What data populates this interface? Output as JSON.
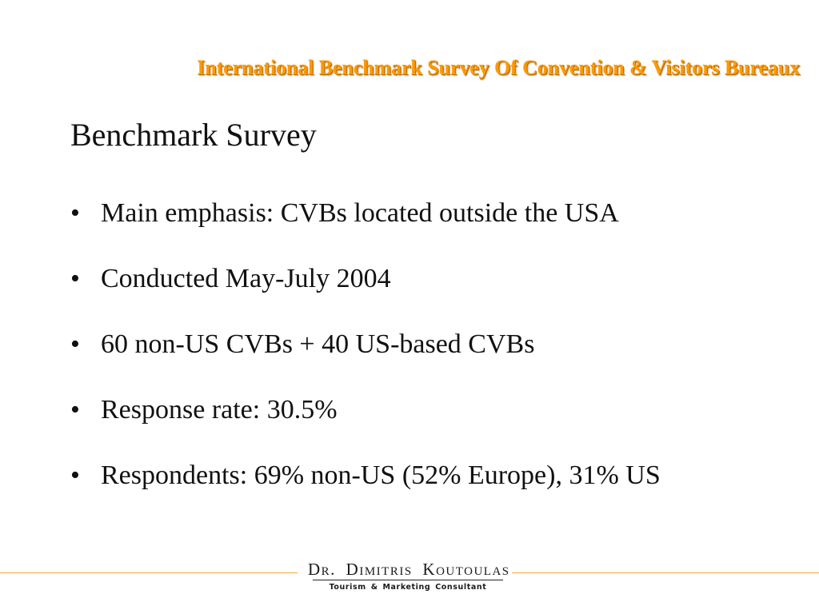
{
  "header": {
    "title": "International Benchmark Survey Of Convention & Visitors Bureaux"
  },
  "slide": {
    "title": "Benchmark Survey",
    "bullet_symbol": "•",
    "bullets": [
      "Main emphasis: CVBs located outside the USA",
      "Conducted May-July 2004",
      "60 non-US CVBs + 40 US-based CVBs",
      "Response rate: 30.5%",
      "Respondents: 69% non-US (52% Europe), 31% US"
    ]
  },
  "footer": {
    "logo_name": "Dr. Dimitris Koutoulas",
    "tagline": "Tourism & Marketing Consultant",
    "accent_color": "#f0a640"
  },
  "colors": {
    "header_title": "#ff9900",
    "body_text": "#111111",
    "background": "#ffffff"
  }
}
